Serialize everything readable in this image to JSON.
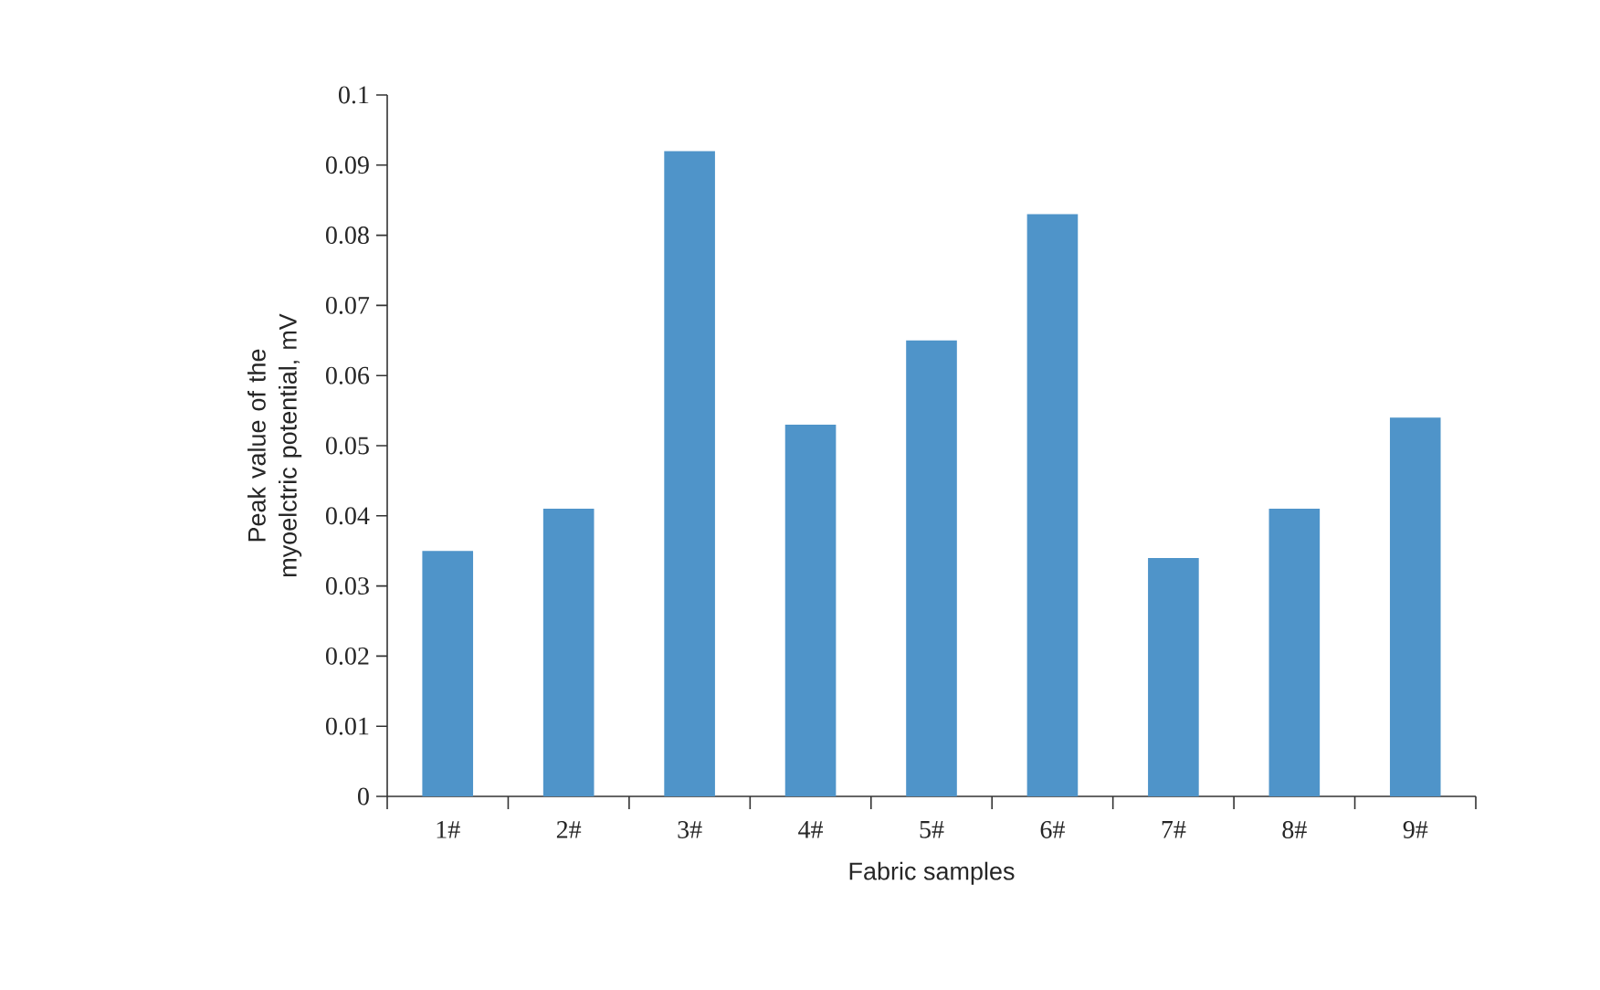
{
  "chart_data": {
    "type": "bar",
    "xlabel": "Fabric samples",
    "ylabel": "Peak value of the myoelctric potential, mV",
    "categories": [
      "1#",
      "2#",
      "3#",
      "4#",
      "5#",
      "6#",
      "7#",
      "8#",
      "9#"
    ],
    "values": [
      0.035,
      0.041,
      0.092,
      0.053,
      0.065,
      0.083,
      0.034,
      0.041,
      0.054
    ],
    "color": "#4f94c9",
    "ylim": [
      0,
      0.1
    ],
    "yticks": [
      0,
      0.01,
      0.02,
      0.03,
      0.04,
      0.05,
      0.06,
      0.07,
      0.08,
      0.09,
      0.1
    ],
    "grid": false
  }
}
